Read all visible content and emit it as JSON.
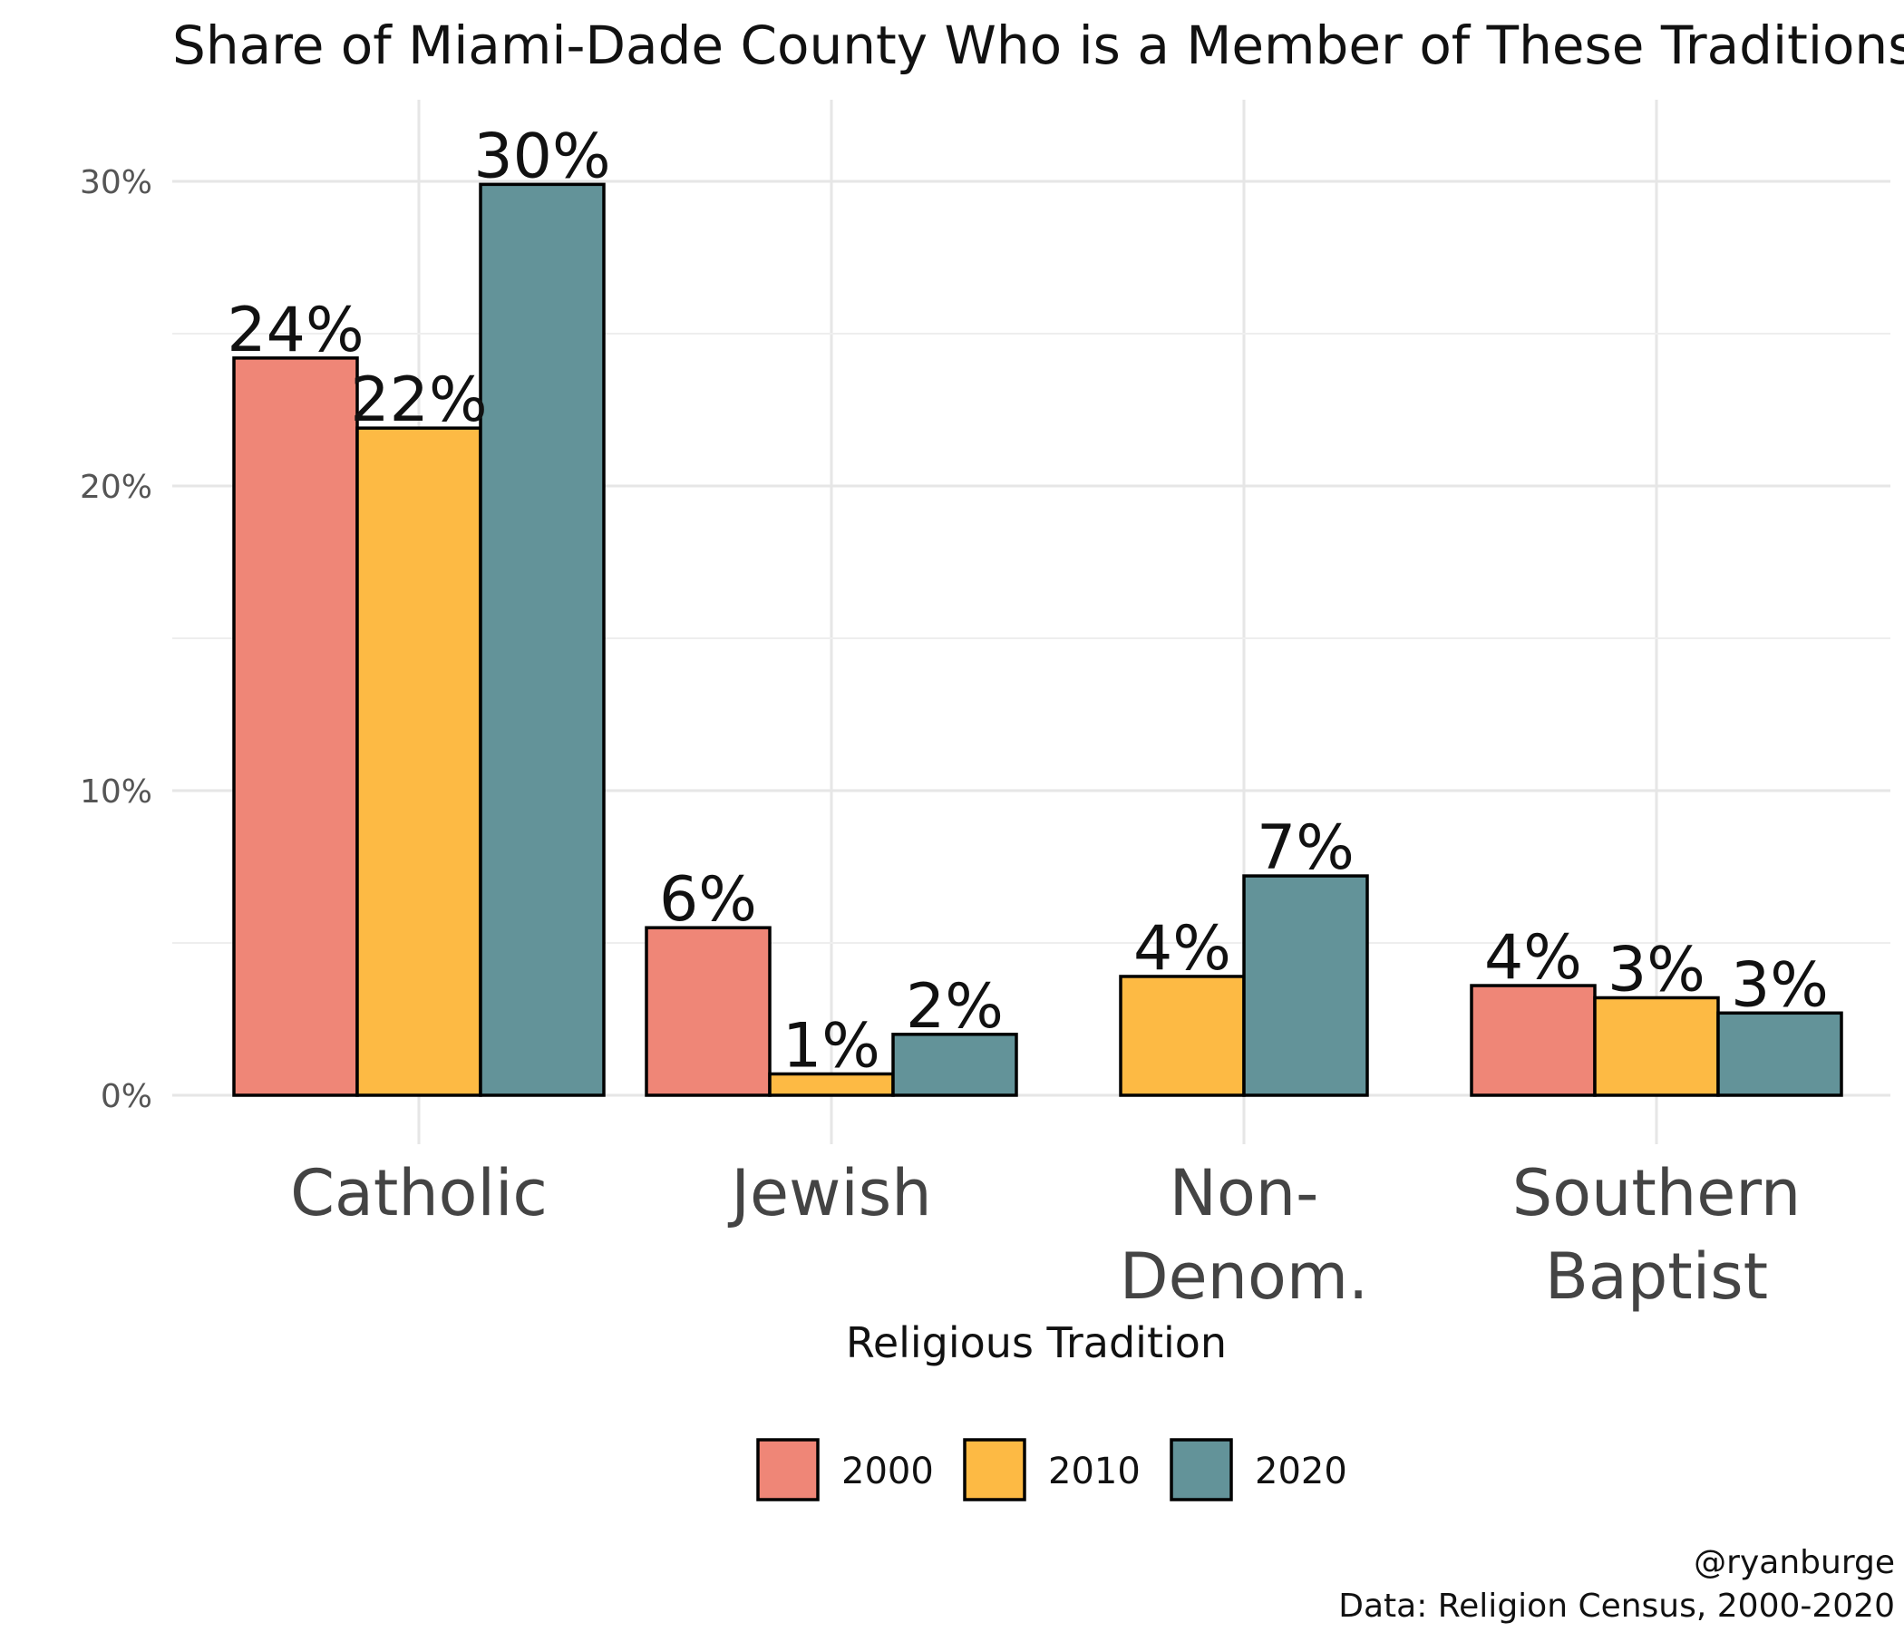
{
  "chart_data": {
    "type": "bar",
    "title": "Share of Miami-Dade County Who is a Member of These Traditions",
    "xlabel": "Religious Tradition",
    "ylabel": "",
    "categories": [
      {
        "label_lines": [
          "Catholic"
        ]
      },
      {
        "label_lines": [
          "Jewish"
        ]
      },
      {
        "label_lines": [
          "Non-",
          "Denom."
        ]
      },
      {
        "label_lines": [
          "Southern",
          "Baptist"
        ]
      }
    ],
    "series": [
      {
        "name": "2000",
        "color": "#EF8677",
        "values": [
          24.2,
          5.5,
          null,
          3.6
        ],
        "labels": [
          "24%",
          "6%",
          "",
          "4%"
        ]
      },
      {
        "name": "2010",
        "color": "#FDBA44",
        "values": [
          21.9,
          0.7,
          3.9,
          3.2
        ],
        "labels": [
          "22%",
          "1%",
          "4%",
          "3%"
        ]
      },
      {
        "name": "2020",
        "color": "#639399",
        "values": [
          29.9,
          2.0,
          7.2,
          2.7
        ],
        "labels": [
          "30%",
          "2%",
          "7%",
          "3%"
        ]
      }
    ],
    "ylim": [
      0,
      32
    ],
    "yticks": [
      0,
      10,
      20,
      30
    ],
    "ytick_labels": [
      "0%",
      "10%",
      "20%",
      "30%"
    ],
    "grid": true,
    "legend_position": "bottom"
  },
  "caption": {
    "line1": "@ryanburge",
    "line2": "Data: Religion Census, 2000-2020"
  }
}
